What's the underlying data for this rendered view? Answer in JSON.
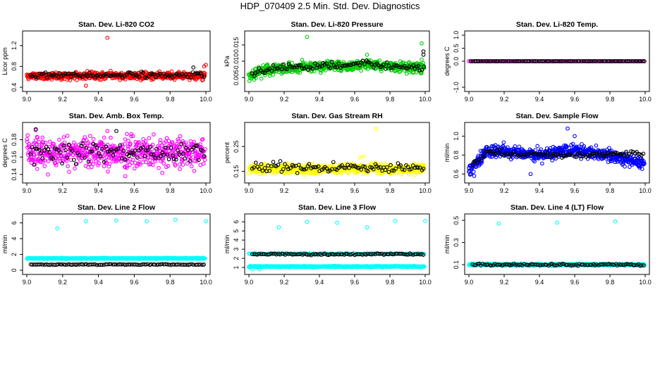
{
  "page": {
    "title": "HDP_070409  2.5 Min. Std. Dev. Diagnostics"
  },
  "chart_data": [
    {
      "type": "scatter",
      "title": "Stan. Dev. Li-820 CO2",
      "xlabel": "",
      "ylabel": "Licor ppm",
      "xlim": [
        9.0,
        10.0
      ],
      "ylim": [
        0.4,
        1.4
      ],
      "xticks": [
        9.0,
        9.2,
        9.4,
        9.6,
        9.8,
        10.0
      ],
      "xticklabels": [
        "9.0",
        "9.2",
        "9.4",
        "9.6",
        "9.8",
        "10.0"
      ],
      "yticks": [
        0.4,
        0.8,
        1.2
      ],
      "yticklabels": [
        "0.4",
        "0.8",
        "1.2"
      ],
      "series": [
        {
          "name": "primary",
          "color": "#ff0000",
          "n": 560,
          "x_start": 9.0,
          "x_end": 9.995,
          "base": 0.62,
          "spread": 0.06,
          "trend": [],
          "outliers": [
            [
              9.45,
              1.35
            ],
            [
              9.33,
              0.43
            ],
            [
              9.99,
              0.8
            ],
            [
              10.0,
              0.83
            ]
          ]
        },
        {
          "name": "reference",
          "color": "#000000",
          "n": 95,
          "x_start": 9.02,
          "x_end": 9.99,
          "base": 0.63,
          "spread": 0.05,
          "trend": [],
          "outliers": [
            [
              9.93,
              0.78
            ]
          ]
        }
      ]
    },
    {
      "type": "scatter",
      "title": "Stan. Dev. Li-820 Pressure",
      "xlabel": "",
      "ylabel": "kPa",
      "xlim": [
        9.0,
        10.0
      ],
      "ylim": [
        0.002,
        0.018
      ],
      "xticks": [
        9.0,
        9.2,
        9.4,
        9.6,
        9.8,
        10.0
      ],
      "xticklabels": [
        "9.0",
        "9.2",
        "9.4",
        "9.6",
        "9.8",
        "10.0"
      ],
      "yticks": [
        0.005,
        0.01,
        0.015
      ],
      "yticklabels": [
        "0.005",
        "0.010",
        "0.015"
      ],
      "series": [
        {
          "name": "primary",
          "color": "#00cc00",
          "n": 620,
          "x_start": 9.0,
          "x_end": 9.995,
          "base": 0.0078,
          "spread": 0.0014,
          "trend": [
            [
              9.0,
              0.0055
            ],
            [
              9.1,
              0.0075
            ],
            [
              9.4,
              0.0085
            ],
            [
              9.7,
              0.009
            ],
            [
              10.0,
              0.0078
            ]
          ],
          "outliers": [
            [
              9.33,
              0.0175
            ],
            [
              9.67,
              0.012
            ],
            [
              9.98,
              0.0155
            ],
            [
              9.98,
              0.0105
            ]
          ]
        },
        {
          "name": "reference",
          "color": "#000000",
          "n": 100,
          "x_start": 9.02,
          "x_end": 9.99,
          "base": 0.0082,
          "spread": 0.001,
          "trend": [
            [
              9.0,
              0.006
            ],
            [
              9.15,
              0.008
            ],
            [
              9.6,
              0.009
            ],
            [
              10.0,
              0.008
            ]
          ],
          "outliers": [
            [
              9.99,
              0.013
            ],
            [
              9.99,
              0.012
            ]
          ]
        }
      ]
    },
    {
      "type": "scatter",
      "title": "Stan. Dev. Li-820 Temp.",
      "xlabel": "",
      "ylabel": "degrees C",
      "xlim": [
        9.0,
        10.0
      ],
      "ylim": [
        -1.0,
        1.0
      ],
      "xticks": [
        9.0,
        9.2,
        9.4,
        9.6,
        9.8,
        10.0
      ],
      "xticklabels": [
        "9.0",
        "9.2",
        "9.4",
        "9.6",
        "9.8",
        "10.0"
      ],
      "yticks": [
        -1.0,
        0.0,
        0.5,
        1.0
      ],
      "yticklabels": [
        "-1.0",
        "0.0",
        "0.5",
        "1.0"
      ],
      "series": [
        {
          "name": "primary",
          "color": "#ff00ff",
          "n": 120,
          "x_start": 9.0,
          "x_end": 9.995,
          "base": 0.0,
          "spread": 0.0,
          "trend": [],
          "outliers": []
        },
        {
          "name": "reference",
          "color": "#000000",
          "n": 95,
          "x_start": 9.01,
          "x_end": 9.995,
          "base": 0.0,
          "spread": 0.0,
          "trend": [],
          "outliers": []
        }
      ]
    },
    {
      "type": "scatter",
      "title": "Stan. Dev. Amb. Box Temp.",
      "xlabel": "",
      "ylabel": "degrees C",
      "xlim": [
        9.0,
        10.0
      ],
      "ylim": [
        0.135,
        0.195
      ],
      "xticks": [
        9.0,
        9.2,
        9.4,
        9.6,
        9.8,
        10.0
      ],
      "xticklabels": [
        "9.0",
        "9.2",
        "9.4",
        "9.6",
        "9.8",
        "10.0"
      ],
      "yticks": [
        0.14,
        0.16,
        0.18
      ],
      "yticklabels": [
        "0.14",
        "0.16",
        "0.18"
      ],
      "series": [
        {
          "name": "primary",
          "color": "#ff00ff",
          "n": 600,
          "x_start": 9.0,
          "x_end": 9.995,
          "base": 0.165,
          "spread": 0.015,
          "trend": [],
          "outliers": [
            [
              9.05,
              0.191
            ],
            [
              9.45,
              0.19
            ],
            [
              9.55,
              0.138
            ]
          ]
        },
        {
          "name": "reference",
          "color": "#000000",
          "n": 100,
          "x_start": 9.02,
          "x_end": 9.99,
          "base": 0.165,
          "spread": 0.01,
          "trend": [],
          "outliers": [
            [
              9.05,
              0.192
            ],
            [
              9.5,
              0.19
            ]
          ]
        }
      ]
    },
    {
      "type": "scatter",
      "title": "Stan. Dev. Gas Stream RH",
      "xlabel": "",
      "ylabel": "percent",
      "xlim": [
        9.0,
        10.0
      ],
      "ylim": [
        0.12,
        0.33
      ],
      "xticks": [
        9.0,
        9.2,
        9.4,
        9.6,
        9.8,
        10.0
      ],
      "xticklabels": [
        "9.0",
        "9.2",
        "9.4",
        "9.6",
        "9.8",
        "10.0"
      ],
      "yticks": [
        0.15,
        0.25
      ],
      "yticklabels": [
        "0.15",
        "0.25"
      ],
      "series": [
        {
          "name": "primary",
          "color": "#ffff00",
          "n": 600,
          "x_start": 9.0,
          "x_end": 9.995,
          "base": 0.16,
          "spread": 0.018,
          "trend": [],
          "outliers": [
            [
              9.72,
              0.32
            ],
            [
              9.65,
              0.21
            ],
            [
              9.63,
              0.205
            ]
          ]
        },
        {
          "name": "reference",
          "color": "#000000",
          "n": 100,
          "x_start": 9.02,
          "x_end": 9.99,
          "base": 0.165,
          "spread": 0.015,
          "trend": [],
          "outliers": []
        }
      ]
    },
    {
      "type": "scatter",
      "title": "Stan. Dev. Sample Flow",
      "xlabel": "",
      "ylabel": "ml/min",
      "xlim": [
        9.0,
        10.0
      ],
      "ylim": [
        0.55,
        1.1
      ],
      "xticks": [
        9.0,
        9.2,
        9.4,
        9.6,
        9.8,
        10.0
      ],
      "xticklabels": [
        "9.0",
        "9.2",
        "9.4",
        "9.6",
        "9.8",
        "10.0"
      ],
      "yticks": [
        0.6,
        0.8,
        1.0
      ],
      "yticklabels": [
        "0.6",
        "0.8",
        "1.0"
      ],
      "series": [
        {
          "name": "primary",
          "color": "#0000ff",
          "n": 620,
          "x_start": 9.0,
          "x_end": 9.995,
          "base": 0.8,
          "spread": 0.06,
          "trend": [
            [
              9.0,
              0.63
            ],
            [
              9.05,
              0.72
            ],
            [
              9.1,
              0.85
            ],
            [
              9.2,
              0.84
            ],
            [
              9.4,
              0.8
            ],
            [
              9.6,
              0.85
            ],
            [
              9.8,
              0.8
            ],
            [
              9.9,
              0.75
            ],
            [
              10.0,
              0.72
            ]
          ],
          "outliers": [
            [
              9.56,
              1.08
            ],
            [
              9.6,
              1.0
            ],
            [
              9.35,
              0.6
            ],
            [
              9.03,
              0.58
            ]
          ]
        },
        {
          "name": "reference",
          "color": "#000000",
          "n": 100,
          "x_start": 9.02,
          "x_end": 9.99,
          "base": 0.8,
          "spread": 0.03,
          "trend": [
            [
              9.0,
              0.68
            ],
            [
              9.1,
              0.82
            ],
            [
              9.5,
              0.8
            ],
            [
              10.0,
              0.82
            ]
          ],
          "outliers": []
        }
      ]
    },
    {
      "type": "scatter",
      "title": "Stan. Dev. Line 2 Flow",
      "xlabel": "",
      "ylabel": "ml/min",
      "xlim": [
        9.0,
        10.0
      ],
      "ylim": [
        0,
        6.6
      ],
      "xticks": [
        9.0,
        9.2,
        9.4,
        9.6,
        9.8,
        10.0
      ],
      "xticklabels": [
        "9.0",
        "9.2",
        "9.4",
        "9.6",
        "9.8",
        "10.0"
      ],
      "yticks": [
        0,
        2,
        4,
        6
      ],
      "yticklabels": [
        "0",
        "2",
        "4",
        "6"
      ],
      "series": [
        {
          "name": "primary",
          "color": "#00ffff",
          "n": 600,
          "x_start": 9.0,
          "x_end": 9.995,
          "base": 1.5,
          "spread": 0.06,
          "trend": [],
          "outliers": [
            [
              9.17,
              5.3
            ],
            [
              9.33,
              6.2
            ],
            [
              9.5,
              6.3
            ],
            [
              9.67,
              6.2
            ],
            [
              9.83,
              6.4
            ],
            [
              10.0,
              6.2
            ]
          ]
        },
        {
          "name": "reference",
          "color": "#000000",
          "n": 100,
          "x_start": 9.02,
          "x_end": 9.99,
          "base": 0.72,
          "spread": 0.05,
          "trend": [],
          "outliers": []
        }
      ]
    },
    {
      "type": "scatter",
      "title": "Stan. Dev. Line 3 Flow",
      "xlabel": "",
      "ylabel": "ml/min",
      "xlim": [
        9.0,
        10.0
      ],
      "ylim": [
        0.7,
        6.4
      ],
      "xticks": [
        9.0,
        9.2,
        9.4,
        9.6,
        9.8,
        10.0
      ],
      "xticklabels": [
        "9.0",
        "9.2",
        "9.4",
        "9.6",
        "9.8",
        "10.0"
      ],
      "yticks": [
        1,
        2,
        3,
        4,
        5,
        6
      ],
      "yticklabels": [
        "1",
        "2",
        "3",
        "4",
        "5",
        "6"
      ],
      "series": [
        {
          "name": "primary",
          "color": "#00ffff",
          "n": 600,
          "x_start": 9.0,
          "x_end": 9.995,
          "base": 1.1,
          "spread": 0.06,
          "trend": [],
          "outliers": [
            [
              9.17,
              5.4
            ],
            [
              9.33,
              6.0
            ],
            [
              9.5,
              5.9
            ],
            [
              9.67,
              5.4
            ],
            [
              9.83,
              6.1
            ],
            [
              10.0,
              6.1
            ],
            [
              9.02,
              0.8
            ],
            [
              9.06,
              0.8
            ]
          ]
        },
        {
          "name": "primary-upper",
          "color": "#00ffff",
          "n": 140,
          "x_start": 9.0,
          "x_end": 9.995,
          "base": 2.5,
          "spread": 0.07,
          "trend": [],
          "outliers": []
        },
        {
          "name": "reference",
          "color": "#000000",
          "n": 100,
          "x_start": 9.02,
          "x_end": 9.99,
          "base": 2.45,
          "spread": 0.07,
          "trend": [],
          "outliers": []
        }
      ]
    },
    {
      "type": "scatter",
      "title": "Stan. Dev. Line 4 (LT) Flow",
      "xlabel": "",
      "ylabel": "ml/min",
      "xlim": [
        9.0,
        10.0
      ],
      "ylim": [
        0.05,
        0.52
      ],
      "xticks": [
        9.0,
        9.2,
        9.4,
        9.6,
        9.8,
        10.0
      ],
      "xticklabels": [
        "9.0",
        "9.2",
        "9.4",
        "9.6",
        "9.8",
        "10.0"
      ],
      "yticks": [
        0.1,
        0.3,
        0.5
      ],
      "yticklabels": [
        "0.1",
        "0.3",
        "0.5"
      ],
      "series": [
        {
          "name": "primary",
          "color": "#00ffff",
          "n": 600,
          "x_start": 9.0,
          "x_end": 9.995,
          "base": 0.1,
          "spread": 0.008,
          "trend": [],
          "outliers": [
            [
              9.17,
              0.47
            ],
            [
              9.5,
              0.48
            ],
            [
              9.83,
              0.49
            ]
          ]
        },
        {
          "name": "reference",
          "color": "#000000",
          "n": 100,
          "x_start": 9.02,
          "x_end": 9.99,
          "base": 0.1,
          "spread": 0.008,
          "trend": [],
          "outliers": []
        }
      ]
    }
  ]
}
